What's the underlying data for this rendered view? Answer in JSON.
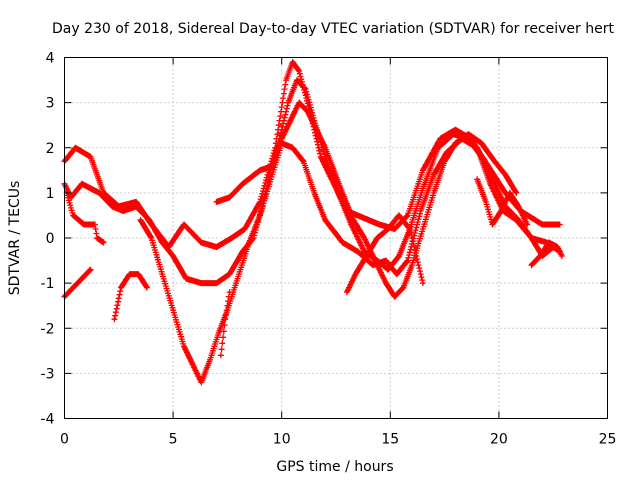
{
  "chart_data": {
    "type": "scatter",
    "title": "Day 230 of 2018, Sidereal Day-to-day VTEC variation (SDTVAR) for receiver hert",
    "xlabel": "GPS time / hours",
    "ylabel": "SDTVAR / TECUs",
    "xlim": [
      0,
      25
    ],
    "ylim": [
      -4,
      4
    ],
    "xticks": [
      0,
      5,
      10,
      15,
      20,
      25
    ],
    "yticks": [
      -4,
      -3,
      -2,
      -1,
      0,
      1,
      2,
      3,
      4
    ],
    "grid": true,
    "marker": "+",
    "color": "#ff0000",
    "series": [
      {
        "name": "trace-1",
        "points": [
          [
            0.0,
            1.7
          ],
          [
            0.5,
            2.0
          ],
          [
            1.2,
            1.8
          ],
          [
            1.8,
            1.0
          ],
          [
            2.5,
            0.7
          ],
          [
            3.3,
            0.8
          ],
          [
            4.0,
            0.3
          ],
          [
            4.8,
            -0.2
          ],
          [
            5.5,
            0.3
          ],
          [
            6.3,
            -0.1
          ],
          [
            7.0,
            -0.2
          ],
          [
            7.7,
            0.0
          ],
          [
            8.3,
            0.2
          ],
          [
            9.0,
            0.8
          ],
          [
            9.7,
            2.0
          ],
          [
            10.2,
            3.5
          ],
          [
            10.5,
            3.9
          ],
          [
            10.8,
            3.7
          ],
          [
            11.3,
            2.8
          ],
          [
            11.8,
            1.8
          ],
          [
            12.3,
            1.3
          ],
          [
            13.0,
            0.6
          ],
          [
            14.0,
            0.4
          ],
          [
            14.5,
            0.3
          ],
          [
            15.2,
            0.2
          ],
          [
            15.8,
            0.5
          ],
          [
            16.5,
            1.5
          ],
          [
            17.3,
            2.2
          ],
          [
            18.0,
            2.4
          ],
          [
            18.7,
            2.2
          ],
          [
            19.5,
            1.6
          ],
          [
            20.3,
            1.0
          ],
          [
            21.0,
            0.6
          ],
          [
            22.0,
            0.3
          ],
          [
            22.8,
            0.3
          ]
        ]
      },
      {
        "name": "trace-2",
        "points": [
          [
            0.0,
            1.2
          ],
          [
            0.3,
            0.9
          ],
          [
            0.8,
            1.2
          ],
          [
            1.2,
            1.1
          ],
          [
            1.6,
            1.0
          ],
          [
            2.2,
            0.7
          ],
          [
            2.7,
            0.6
          ],
          [
            3.3,
            0.7
          ],
          [
            3.9,
            0.4
          ],
          [
            4.5,
            -0.1
          ],
          [
            5.0,
            -0.4
          ],
          [
            5.6,
            -0.9
          ],
          [
            6.3,
            -1.0
          ],
          [
            7.0,
            -1.0
          ],
          [
            7.6,
            -0.8
          ],
          [
            8.2,
            -0.3
          ],
          [
            8.7,
            0.0
          ],
          [
            9.1,
            0.7
          ],
          [
            9.5,
            1.5
          ],
          [
            9.9,
            2.2
          ],
          [
            10.3,
            3.0
          ],
          [
            10.7,
            3.5
          ],
          [
            11.1,
            3.3
          ],
          [
            11.5,
            2.6
          ],
          [
            12.0,
            1.8
          ],
          [
            12.6,
            1.0
          ],
          [
            13.2,
            0.3
          ],
          [
            13.8,
            -0.3
          ],
          [
            14.4,
            -0.5
          ],
          [
            14.9,
            -0.7
          ],
          [
            15.4,
            -0.4
          ],
          [
            15.9,
            0.2
          ],
          [
            16.5,
            1.1
          ],
          [
            17.2,
            2.0
          ],
          [
            17.9,
            2.3
          ],
          [
            18.6,
            2.2
          ],
          [
            19.2,
            1.8
          ],
          [
            19.8,
            1.2
          ],
          [
            20.3,
            0.7
          ],
          [
            20.9,
            0.4
          ],
          [
            21.5,
            0.0
          ],
          [
            22.0,
            -0.4
          ],
          [
            22.5,
            -0.2
          ]
        ]
      },
      {
        "name": "trace-3",
        "points": [
          [
            0.0,
            -1.3
          ],
          [
            0.4,
            -1.1
          ],
          [
            0.8,
            -0.9
          ],
          [
            1.2,
            -0.7
          ]
        ]
      },
      {
        "name": "trace-4",
        "points": [
          [
            0.1,
            1.0
          ],
          [
            0.4,
            0.5
          ],
          [
            0.9,
            0.3
          ],
          [
            1.4,
            0.3
          ],
          [
            1.5,
            0.0
          ],
          [
            1.8,
            -0.1
          ]
        ]
      },
      {
        "name": "trace-5",
        "points": [
          [
            2.3,
            -1.8
          ],
          [
            2.6,
            -1.1
          ],
          [
            3.0,
            -0.8
          ],
          [
            3.4,
            -0.8
          ],
          [
            3.8,
            -1.1
          ]
        ]
      },
      {
        "name": "trace-6",
        "points": [
          [
            3.5,
            0.4
          ],
          [
            4.0,
            0.0
          ],
          [
            4.5,
            -0.8
          ],
          [
            5.0,
            -1.6
          ],
          [
            5.5,
            -2.4
          ],
          [
            6.0,
            -2.9
          ],
          [
            6.3,
            -3.2
          ],
          [
            6.7,
            -2.7
          ],
          [
            7.1,
            -2.1
          ],
          [
            7.5,
            -1.6
          ],
          [
            7.9,
            -1.0
          ],
          [
            8.5,
            -0.1
          ],
          [
            9.0,
            0.5
          ],
          [
            9.5,
            1.3
          ],
          [
            10.0,
            2.1
          ],
          [
            10.5,
            2.0
          ],
          [
            11.0,
            1.7
          ],
          [
            11.5,
            1.0
          ],
          [
            12.0,
            0.4
          ],
          [
            12.8,
            -0.1
          ],
          [
            13.5,
            -0.3
          ],
          [
            14.2,
            -0.6
          ],
          [
            14.8,
            -0.5
          ],
          [
            15.3,
            -0.8
          ],
          [
            15.8,
            -0.5
          ],
          [
            16.4,
            0.6
          ],
          [
            17.0,
            1.4
          ],
          [
            17.6,
            1.9
          ],
          [
            18.3,
            2.2
          ],
          [
            19.0,
            2.0
          ],
          [
            19.6,
            1.2
          ],
          [
            20.2,
            0.6
          ],
          [
            20.8,
            0.4
          ],
          [
            21.5,
            0.0
          ],
          [
            22.2,
            -0.1
          ],
          [
            22.8,
            -0.3
          ]
        ]
      },
      {
        "name": "trace-7",
        "points": [
          [
            7.2,
            -2.6
          ],
          [
            7.4,
            -1.8
          ],
          [
            7.5,
            -1.5
          ],
          [
            7.6,
            -1.2
          ]
        ]
      },
      {
        "name": "trace-8",
        "points": [
          [
            7.0,
            0.8
          ],
          [
            7.6,
            0.9
          ],
          [
            8.2,
            1.2
          ],
          [
            9.0,
            1.5
          ],
          [
            9.6,
            1.6
          ],
          [
            10.0,
            2.2
          ],
          [
            10.4,
            2.6
          ],
          [
            10.8,
            3.0
          ],
          [
            11.2,
            2.8
          ],
          [
            11.6,
            2.4
          ],
          [
            12.0,
            2.0
          ],
          [
            12.4,
            1.5
          ],
          [
            12.8,
            1.0
          ],
          [
            13.3,
            0.4
          ],
          [
            13.8,
            0.0
          ],
          [
            14.3,
            -0.5
          ],
          [
            14.8,
            -1.0
          ],
          [
            15.2,
            -1.3
          ],
          [
            15.6,
            -1.1
          ],
          [
            16.0,
            -0.6
          ],
          [
            16.5,
            0.2
          ],
          [
            17.0,
            1.0
          ],
          [
            17.5,
            1.7
          ],
          [
            18.0,
            2.1
          ],
          [
            18.6,
            2.3
          ],
          [
            19.2,
            2.1
          ],
          [
            19.8,
            1.7
          ],
          [
            20.3,
            1.4
          ],
          [
            20.8,
            1.0
          ]
        ]
      },
      {
        "name": "trace-9",
        "points": [
          [
            13.0,
            -1.2
          ],
          [
            13.4,
            -0.8
          ],
          [
            13.9,
            -0.4
          ],
          [
            14.4,
            0.0
          ],
          [
            14.9,
            0.2
          ],
          [
            15.4,
            0.5
          ],
          [
            15.9,
            0.2
          ],
          [
            16.2,
            -0.4
          ],
          [
            16.5,
            -1.0
          ]
        ]
      },
      {
        "name": "trace-10",
        "points": [
          [
            19.0,
            1.3
          ],
          [
            19.4,
            0.8
          ],
          [
            19.7,
            0.3
          ],
          [
            20.1,
            0.6
          ],
          [
            20.5,
            1.0
          ],
          [
            20.9,
            0.7
          ],
          [
            21.3,
            0.3
          ]
        ]
      },
      {
        "name": "trace-11",
        "points": [
          [
            21.5,
            -0.6
          ],
          [
            21.9,
            -0.4
          ],
          [
            22.3,
            -0.1
          ],
          [
            22.7,
            -0.2
          ],
          [
            22.9,
            -0.4
          ]
        ]
      }
    ]
  }
}
